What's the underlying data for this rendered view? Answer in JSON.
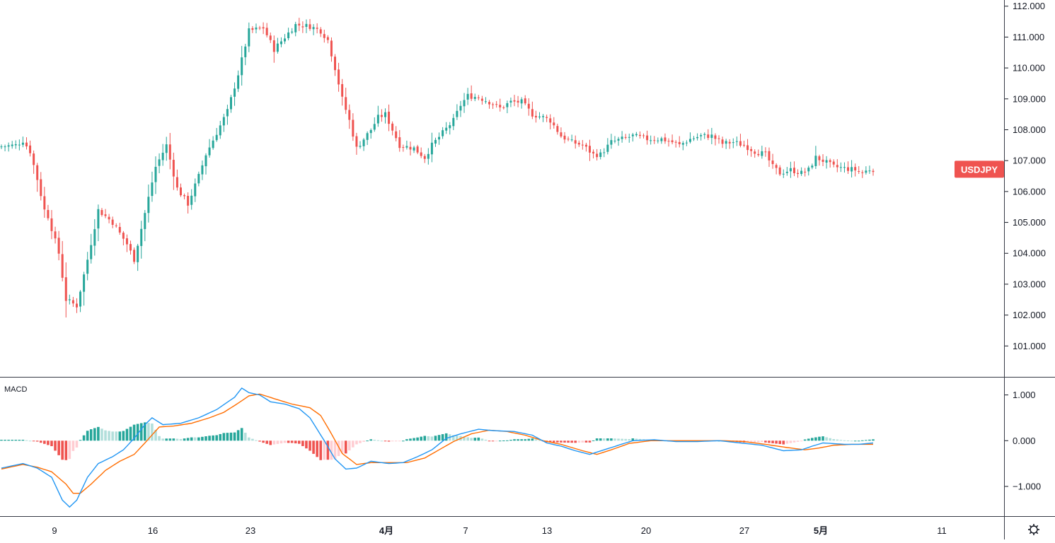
{
  "symbol": "USDJPY",
  "colors": {
    "up": "#26a69a",
    "down": "#ef5350",
    "hist_up_strong": "#26a69a",
    "hist_up_weak": "#b2dfdb",
    "hist_down_strong": "#ef5350",
    "hist_down_weak": "#ffcdd2",
    "macd_line": "#2196f3",
    "signal_line": "#ff6d00",
    "axis": "#131722",
    "badge_bg": "#ef5350"
  },
  "price_axis": {
    "ticks": [
      "112.000",
      "111.000",
      "110.000",
      "109.000",
      "108.000",
      "107.000",
      "106.000",
      "105.000",
      "104.000",
      "103.000",
      "102.000",
      "101.000"
    ],
    "min": 100.0,
    "max": 112.2
  },
  "macd_panel": {
    "label": "MACD",
    "ticks": [
      "1.000",
      "0.000",
      "−1.000"
    ],
    "min": -1.65,
    "max": 1.38
  },
  "time_axis": [
    {
      "label": "9",
      "bold": false
    },
    {
      "label": "16",
      "bold": false
    },
    {
      "label": "23",
      "bold": false
    },
    {
      "label": "4月",
      "bold": true
    },
    {
      "label": "7",
      "bold": false
    },
    {
      "label": "13",
      "bold": false
    },
    {
      "label": "20",
      "bold": false
    },
    {
      "label": "27",
      "bold": false
    },
    {
      "label": "5月",
      "bold": true
    },
    {
      "label": "11",
      "bold": false
    }
  ],
  "settings_icon": "gear-icon",
  "chart_data": {
    "type": "candlestick",
    "symbol": "USDJPY",
    "last_price": 106.72,
    "price_path": [
      [
        0,
        107.45
      ],
      [
        5,
        107.5
      ],
      [
        7,
        107.65
      ],
      [
        9,
        107.3
      ],
      [
        11,
        106.4
      ],
      [
        13,
        105.4
      ],
      [
        14,
        105.2
      ],
      [
        17,
        104.0
      ],
      [
        19,
        102.5
      ],
      [
        22,
        102.3
      ],
      [
        25,
        103.8
      ],
      [
        28,
        105.4
      ],
      [
        32,
        105.0
      ],
      [
        36,
        104.3
      ],
      [
        38,
        103.8
      ],
      [
        41,
        105.3
      ],
      [
        44,
        106.8
      ],
      [
        47,
        107.5
      ],
      [
        50,
        106.1
      ],
      [
        53,
        105.6
      ],
      [
        56,
        106.5
      ],
      [
        58,
        107.2
      ],
      [
        61,
        107.9
      ],
      [
        64,
        108.6
      ],
      [
        67,
        109.8
      ],
      [
        70,
        111.2
      ],
      [
        74,
        111.3
      ],
      [
        77,
        110.6
      ],
      [
        80,
        111.0
      ],
      [
        83,
        111.4
      ],
      [
        87,
        111.35
      ],
      [
        90,
        111.2
      ],
      [
        92,
        110.9
      ],
      [
        94,
        110.0
      ],
      [
        96,
        109.0
      ],
      [
        98,
        108.3
      ],
      [
        100,
        107.4
      ],
      [
        104,
        108.0
      ],
      [
        106,
        108.4
      ],
      [
        108,
        108.5
      ],
      [
        110,
        108.0
      ],
      [
        112,
        107.5
      ],
      [
        116,
        107.4
      ],
      [
        119,
        107.1
      ],
      [
        121,
        107.5
      ],
      [
        124,
        107.9
      ],
      [
        127,
        108.3
      ],
      [
        129,
        108.8
      ],
      [
        131,
        109.1
      ],
      [
        134,
        109.05
      ],
      [
        137,
        108.9
      ],
      [
        140,
        108.7
      ],
      [
        143,
        108.9
      ],
      [
        146,
        108.9
      ],
      [
        149,
        108.5
      ],
      [
        152,
        108.4
      ],
      [
        154,
        108.3
      ],
      [
        157,
        107.8
      ],
      [
        160,
        107.6
      ],
      [
        163,
        107.5
      ],
      [
        166,
        107.2
      ],
      [
        168,
        107.2
      ],
      [
        171,
        107.6
      ],
      [
        174,
        107.7
      ],
      [
        177,
        107.8
      ],
      [
        181,
        107.7
      ],
      [
        185,
        107.7
      ],
      [
        188,
        107.6
      ],
      [
        190,
        107.5
      ],
      [
        193,
        107.7
      ],
      [
        196,
        107.8
      ],
      [
        199,
        107.8
      ],
      [
        202,
        107.55
      ],
      [
        205,
        107.6
      ],
      [
        208,
        107.5
      ],
      [
        211,
        107.3
      ],
      [
        214,
        107.2
      ],
      [
        216,
        106.8
      ],
      [
        218,
        106.6
      ],
      [
        221,
        106.7
      ],
      [
        224,
        106.6
      ],
      [
        226,
        106.7
      ],
      [
        228,
        107.1
      ],
      [
        230,
        107.0
      ],
      [
        233,
        106.8
      ],
      [
        236,
        106.75
      ],
      [
        239,
        106.7
      ],
      [
        241,
        106.6
      ],
      [
        243,
        106.72
      ]
    ],
    "macd_path": [
      [
        0,
        -0.6
      ],
      [
        6,
        -0.5
      ],
      [
        10,
        -0.6
      ],
      [
        14,
        -0.8
      ],
      [
        17,
        -1.3
      ],
      [
        19,
        -1.45
      ],
      [
        21,
        -1.3
      ],
      [
        24,
        -0.8
      ],
      [
        27,
        -0.5
      ],
      [
        31,
        -0.35
      ],
      [
        34,
        -0.2
      ],
      [
        37,
        0.05
      ],
      [
        40,
        0.35
      ],
      [
        42,
        0.5
      ],
      [
        45,
        0.35
      ],
      [
        50,
        0.38
      ],
      [
        55,
        0.5
      ],
      [
        60,
        0.68
      ],
      [
        65,
        0.95
      ],
      [
        67,
        1.15
      ],
      [
        69,
        1.05
      ],
      [
        72,
        1.0
      ],
      [
        75,
        0.85
      ],
      [
        79,
        0.8
      ],
      [
        83,
        0.7
      ],
      [
        86,
        0.5
      ],
      [
        90,
        0.0
      ],
      [
        93,
        -0.4
      ],
      [
        96,
        -0.62
      ],
      [
        99,
        -0.6
      ],
      [
        103,
        -0.45
      ],
      [
        108,
        -0.5
      ],
      [
        112,
        -0.48
      ],
      [
        116,
        -0.35
      ],
      [
        120,
        -0.2
      ],
      [
        124,
        0.05
      ],
      [
        128,
        0.15
      ],
      [
        133,
        0.25
      ],
      [
        137,
        0.22
      ],
      [
        143,
        0.2
      ],
      [
        148,
        0.12
      ],
      [
        152,
        -0.05
      ],
      [
        156,
        -0.12
      ],
      [
        160,
        -0.22
      ],
      [
        164,
        -0.3
      ],
      [
        168,
        -0.2
      ],
      [
        172,
        -0.1
      ],
      [
        176,
        0.0
      ],
      [
        182,
        0.02
      ],
      [
        188,
        -0.02
      ],
      [
        194,
        -0.02
      ],
      [
        200,
        0.0
      ],
      [
        206,
        -0.05
      ],
      [
        212,
        -0.1
      ],
      [
        218,
        -0.22
      ],
      [
        223,
        -0.2
      ],
      [
        226,
        -0.12
      ],
      [
        229,
        -0.05
      ],
      [
        235,
        -0.08
      ],
      [
        239,
        -0.08
      ],
      [
        243,
        -0.05
      ]
    ],
    "signal_path": [
      [
        0,
        -0.62
      ],
      [
        6,
        -0.52
      ],
      [
        10,
        -0.58
      ],
      [
        14,
        -0.68
      ],
      [
        18,
        -0.95
      ],
      [
        20,
        -1.15
      ],
      [
        22,
        -1.15
      ],
      [
        25,
        -0.95
      ],
      [
        29,
        -0.65
      ],
      [
        33,
        -0.45
      ],
      [
        37,
        -0.3
      ],
      [
        40,
        -0.05
      ],
      [
        44,
        0.3
      ],
      [
        48,
        0.32
      ],
      [
        53,
        0.38
      ],
      [
        58,
        0.5
      ],
      [
        62,
        0.62
      ],
      [
        66,
        0.82
      ],
      [
        69,
        0.98
      ],
      [
        72,
        1.02
      ],
      [
        76,
        0.92
      ],
      [
        81,
        0.8
      ],
      [
        86,
        0.72
      ],
      [
        89,
        0.55
      ],
      [
        92,
        0.15
      ],
      [
        95,
        -0.28
      ],
      [
        99,
        -0.52
      ],
      [
        103,
        -0.48
      ],
      [
        108,
        -0.48
      ],
      [
        113,
        -0.48
      ],
      [
        118,
        -0.38
      ],
      [
        122,
        -0.2
      ],
      [
        126,
        -0.02
      ],
      [
        131,
        0.15
      ],
      [
        136,
        0.23
      ],
      [
        141,
        0.2
      ],
      [
        146,
        0.12
      ],
      [
        151,
        0.0
      ],
      [
        156,
        -0.08
      ],
      [
        162,
        -0.22
      ],
      [
        166,
        -0.3
      ],
      [
        170,
        -0.2
      ],
      [
        175,
        -0.06
      ],
      [
        181,
        0.0
      ],
      [
        188,
        0.0
      ],
      [
        195,
        0.0
      ],
      [
        201,
        0.0
      ],
      [
        207,
        -0.02
      ],
      [
        213,
        -0.08
      ],
      [
        219,
        -0.15
      ],
      [
        224,
        -0.2
      ],
      [
        228,
        -0.16
      ],
      [
        232,
        -0.1
      ],
      [
        237,
        -0.08
      ],
      [
        243,
        -0.08
      ]
    ]
  }
}
